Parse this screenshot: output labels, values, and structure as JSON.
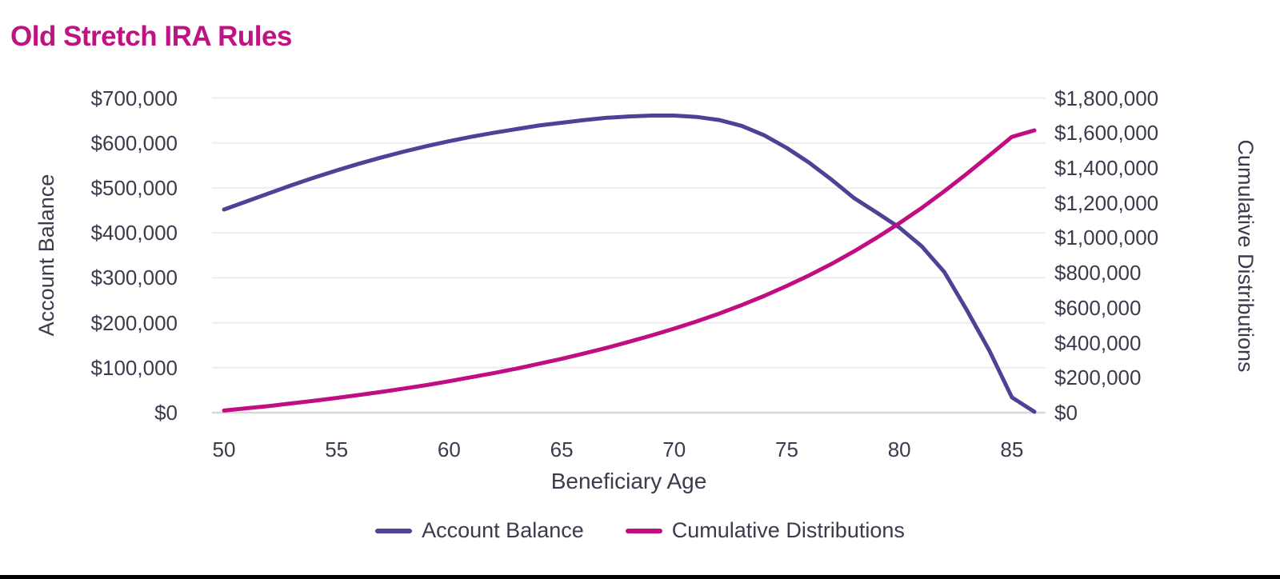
{
  "page": {
    "title": "Old Stretch IRA Rules",
    "title_color": "#c01383",
    "background_color": "#ffffff",
    "bottom_bar_color": "#000000",
    "text_color": "#3b3b4d",
    "gridline_color": "#ececf2",
    "axisline_color": "#d8d8db"
  },
  "chart_data": {
    "type": "line",
    "title": "Old Stretch IRA Rules",
    "xlabel": "Beneficiary Age",
    "x": [
      50,
      51,
      52,
      53,
      54,
      55,
      56,
      57,
      58,
      59,
      60,
      61,
      62,
      63,
      64,
      65,
      66,
      67,
      68,
      69,
      70,
      71,
      72,
      73,
      74,
      75,
      76,
      77,
      78,
      79,
      80,
      81,
      82,
      83,
      84,
      85,
      86
    ],
    "x_tick_labels": [
      "50",
      "55",
      "60",
      "65",
      "70",
      "75",
      "80",
      "85"
    ],
    "x_tick_values": [
      50,
      55,
      60,
      65,
      70,
      75,
      80,
      85
    ],
    "x_range": [
      50,
      86
    ],
    "grid": "horizontal",
    "legend_position": "bottom",
    "left_axis": {
      "label": "Account Balance",
      "range": [
        0,
        700000
      ],
      "tick_labels": [
        "$700,000",
        "$600,000",
        "$500,000",
        "$400,000",
        "$300,000",
        "$200,000",
        "$100,000",
        "$0"
      ]
    },
    "right_axis": {
      "label": "Cumulative Distributions",
      "range": [
        0,
        1800000
      ],
      "tick_labels": [
        "$1,800,000",
        "$1,600,000",
        "$1,400,000",
        "$1,200,000",
        "$1,000,000",
        "$800,000",
        "$600,000",
        "$400,000",
        "$200,000",
        "$0"
      ]
    },
    "series": [
      {
        "name": "Account Balance",
        "axis": "left",
        "color": "#4e4297",
        "values": [
          452000,
          470000,
          488000,
          506000,
          523000,
          539000,
          554000,
          568000,
          581000,
          593000,
          604000,
          614000,
          623000,
          631000,
          639000,
          645000,
          651000,
          656000,
          659000,
          661000,
          661000,
          658000,
          651000,
          638000,
          617000,
          589000,
          556000,
          518000,
          477000,
          445000,
          412000,
          370000,
          313000,
          228000,
          138000,
          34000,
          2000
        ]
      },
      {
        "name": "Cumulative Distributions",
        "axis": "right",
        "color": "#c00d81",
        "values": [
          12000,
          25000,
          38000,
          53000,
          68000,
          84000,
          101000,
          119000,
          138000,
          158000,
          180000,
          203000,
          227000,
          252000,
          280000,
          308000,
          339000,
          371000,
          406000,
          442000,
          481000,
          522000,
          567000,
          616000,
          668000,
          725000,
          786000,
          852000,
          924000,
          1001000,
          1084000,
          1172000,
          1267000,
          1367000,
          1472000,
          1578000,
          1615000
        ]
      }
    ]
  }
}
